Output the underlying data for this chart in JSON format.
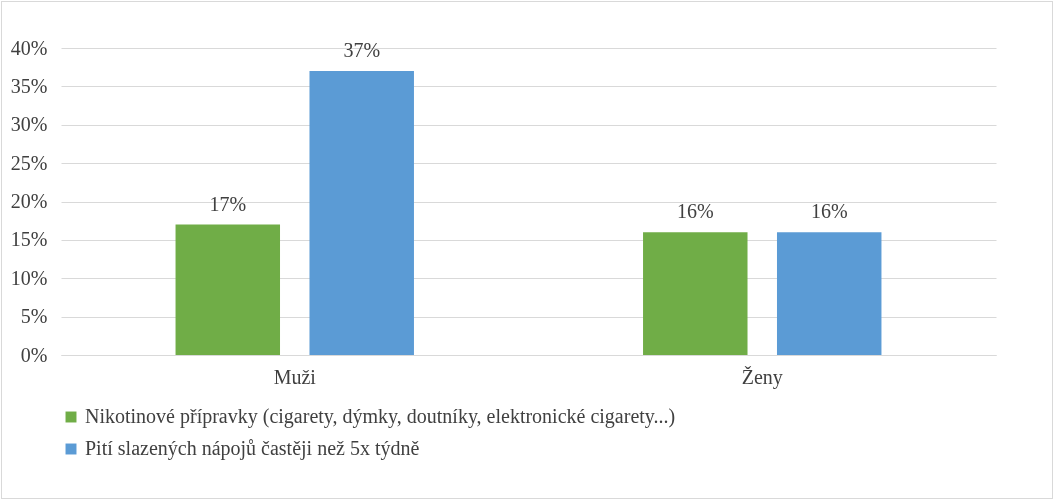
{
  "chart_data": {
    "type": "bar",
    "categories": [
      "Muži",
      "Ženy"
    ],
    "series": [
      {
        "name": "Nikotinové přípravky (cigarety, dýmky, doutníky, elektronické cigarety...)",
        "color": "#70ad47",
        "values": [
          17,
          16
        ],
        "value_labels": [
          "17%",
          "16%"
        ]
      },
      {
        "name": "Pití slazených nápojů častěji než 5x týdně",
        "color": "#5b9bd5",
        "values": [
          37,
          16
        ],
        "value_labels": [
          "37%",
          "16%"
        ]
      }
    ],
    "ylim": [
      0,
      40
    ],
    "yticks": [
      {
        "value": 0,
        "label": "0%"
      },
      {
        "value": 5,
        "label": "5%"
      },
      {
        "value": 10,
        "label": "10%"
      },
      {
        "value": 15,
        "label": "15%"
      },
      {
        "value": 20,
        "label": "20%"
      },
      {
        "value": 25,
        "label": "25%"
      },
      {
        "value": 30,
        "label": "30%"
      },
      {
        "value": 35,
        "label": "35%"
      },
      {
        "value": 40,
        "label": "40%"
      }
    ],
    "grid": "y",
    "legend": "bottom"
  }
}
